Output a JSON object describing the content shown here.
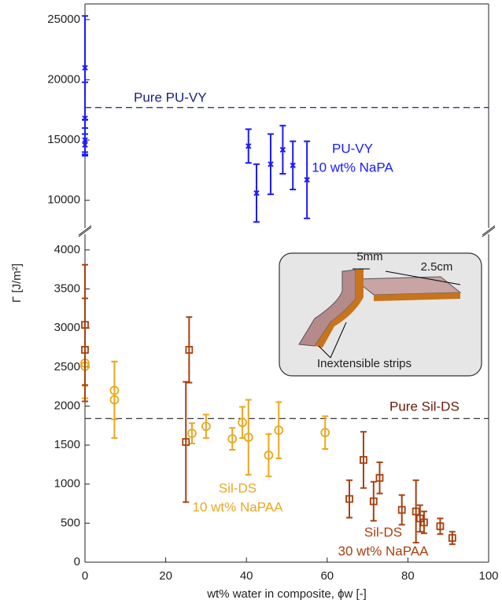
{
  "chart_data": [
    {
      "type": "scatter",
      "ylim": [
        7700,
        26300
      ],
      "xlim": [
        0,
        100
      ],
      "yticks": [
        10000,
        15000,
        20000,
        25000
      ],
      "hlines": [
        {
          "label": "Pure PU-VY",
          "value": 17700,
          "color": "#1a237e"
        }
      ],
      "series": [
        {
          "label_lines": [
            "PU-VY",
            "10 wt% NaPA"
          ],
          "color": "#1a1aff",
          "marker": "x",
          "x": [
            0,
            0,
            0,
            0,
            40.5,
            42.5,
            46,
            49,
            51.5,
            55
          ],
          "values": [
            21000,
            16800,
            15000,
            14600,
            14500,
            10600,
            13000,
            14200,
            12900,
            11700
          ],
          "errors": [
            4300,
            3000,
            1000,
            900,
            1400,
            2400,
            2500,
            2000,
            2000,
            3200
          ]
        }
      ]
    },
    {
      "type": "scatter",
      "ylim": [
        0,
        4200
      ],
      "xlim": [
        0,
        100
      ],
      "yticks": [
        0,
        500,
        1000,
        1500,
        2000,
        2500,
        3000,
        3500,
        4000
      ],
      "xticks": [
        0,
        20,
        40,
        60,
        80,
        100
      ],
      "x_label": "wt% water in composite, ϕw [-]",
      "y_label": "Γ [J/m²]",
      "hlines": [
        {
          "label": "Pure Sil-DS",
          "value": 1840,
          "color": "#222222",
          "label_color": "#6b1a0a"
        }
      ],
      "series": [
        {
          "label_lines": [
            "Sil-DS",
            "10 wt% NaPAA"
          ],
          "color": "#e8a820",
          "marker": "circle",
          "x": [
            0,
            0,
            7.3,
            7.3,
            26.5,
            30,
            36.5,
            39,
            40.5,
            45.5,
            48,
            59.5
          ],
          "values": [
            2550,
            2510,
            2200,
            2080,
            1650,
            1740,
            1580,
            1790,
            1600,
            1370,
            1690,
            1660
          ],
          "errors": [
            450,
            250,
            370,
            490,
            130,
            150,
            140,
            200,
            480,
            270,
            360,
            210
          ]
        },
        {
          "label_lines": [
            "Sil-DS",
            "30 wt% NaPAA"
          ],
          "color": "#a8400f",
          "marker": "square",
          "x": [
            0,
            0,
            25,
            25.8,
            65.5,
            69,
            71.5,
            73,
            78.5,
            82,
            83,
            84,
            88,
            91
          ],
          "values": [
            3040,
            2720,
            1540,
            2720,
            810,
            1310,
            780,
            1080,
            670,
            650,
            560,
            510,
            460,
            310
          ],
          "errors": [
            770,
            660,
            770,
            420,
            240,
            360,
            250,
            200,
            190,
            400,
            170,
            140,
            100,
            80
          ]
        }
      ]
    }
  ],
  "inset": {
    "width_label": "5mm",
    "length_label": "2.5cm",
    "strips_label": "Inextensible strips"
  }
}
